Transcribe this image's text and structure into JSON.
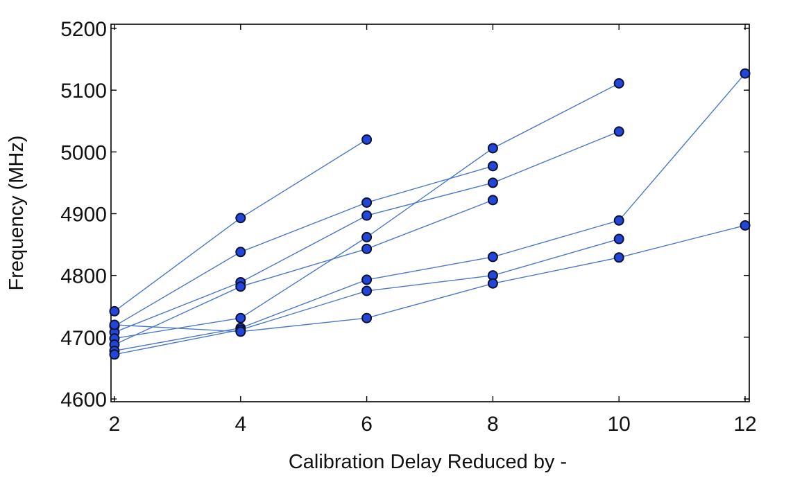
{
  "chart_data": {
    "type": "line",
    "xlabel": "Calibration Delay Reduced by -",
    "ylabel": "Frequency (MHz)",
    "xlim": [
      2,
      12
    ],
    "ylim": [
      4600,
      5200
    ],
    "xticks": [
      2,
      4,
      6,
      8,
      10,
      12
    ],
    "yticks": [
      4600,
      4700,
      4800,
      4900,
      5000,
      5100,
      5200
    ],
    "grid": false,
    "colors": {
      "line": "#4a78c9",
      "marker": "#2346d8",
      "marker_edge": "#0b1233"
    },
    "series": [
      {
        "x": [
          2,
          4,
          6
        ],
        "y": [
          4742,
          4893,
          5020
        ]
      },
      {
        "x": [
          2,
          4,
          6,
          8
        ],
        "y": [
          4718,
          4838,
          4918,
          4977
        ]
      },
      {
        "x": [
          2,
          4,
          6,
          8,
          10
        ],
        "y": [
          4708,
          4789,
          4897,
          4950,
          5033
        ]
      },
      {
        "x": [
          2,
          4,
          6,
          8,
          10
        ],
        "y": [
          4698,
          4731,
          4862,
          5006,
          5111
        ]
      },
      {
        "x": [
          2,
          4,
          6,
          8
        ],
        "y": [
          4688,
          4782,
          4843,
          4922
        ]
      },
      {
        "x": [
          2,
          4,
          6,
          8,
          10,
          12
        ],
        "y": [
          4678,
          4715,
          4793,
          4830,
          4889,
          5127
        ]
      },
      {
        "x": [
          2,
          4,
          6,
          8,
          10
        ],
        "y": [
          4672,
          4712,
          4775,
          4800,
          4859
        ]
      },
      {
        "x": [
          2,
          4,
          6,
          8,
          10,
          12
        ],
        "y": [
          4720,
          4709,
          4731,
          4787,
          4829,
          4881
        ]
      }
    ]
  }
}
